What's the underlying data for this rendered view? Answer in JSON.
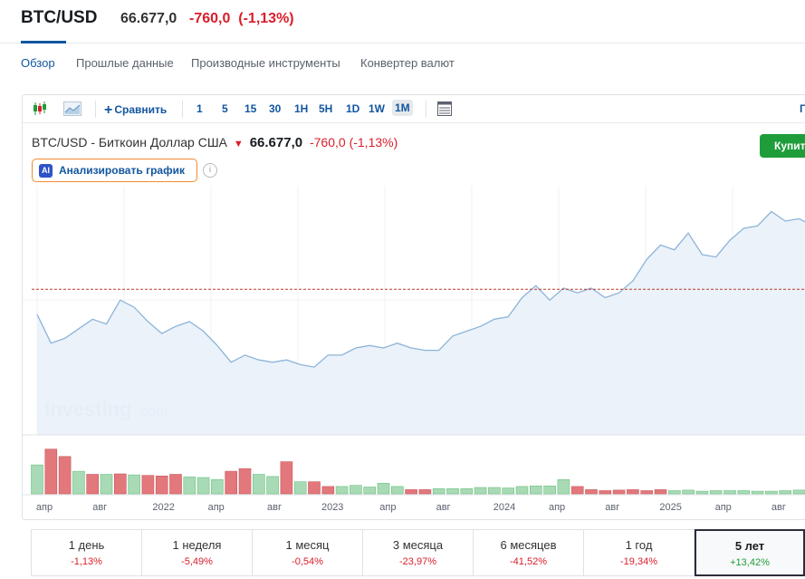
{
  "header": {
    "symbol": "BTC/USD",
    "price": "66.677,0",
    "change": "-760,0",
    "change_pct": "(-1,13%)"
  },
  "tabs": [
    {
      "label": "Обзор",
      "active": true
    },
    {
      "label": "Прошлые данные",
      "active": false
    },
    {
      "label": "Производные инструменты",
      "active": false
    },
    {
      "label": "Конвертер валют",
      "active": false
    }
  ],
  "toolbar": {
    "compare_label": "Сравнить",
    "intervals": [
      "1",
      "5",
      "15",
      "30",
      "1H",
      "5H",
      "1D",
      "1W",
      "1M"
    ],
    "active_interval": "1M",
    "right_label": "Г"
  },
  "legend": {
    "name": "BTC/USD - Биткоин Доллар США",
    "price": "66.677,0",
    "change": "-760,0",
    "change_pct": "(-1,13%)"
  },
  "ai_button": {
    "badge": "AI",
    "label": "Анализировать график"
  },
  "buy_button": {
    "label": "Купит"
  },
  "watermark": {
    "brand": "Investing",
    "suffix": ".com"
  },
  "colors": {
    "up": "#1f9d3a",
    "down": "#d91e2a",
    "line": "#8cb4d8",
    "area": "#e9f1f9",
    "accent": "#1256a0"
  },
  "chart_data": {
    "type": "area",
    "series": [
      {
        "values": [
          0.5,
          0.38,
          0.4,
          0.44,
          0.48,
          0.46,
          0.56,
          0.53,
          0.47,
          0.42,
          0.45,
          0.47,
          0.43,
          0.37,
          0.3,
          0.33,
          0.31,
          0.3,
          0.31,
          0.29,
          0.28,
          0.33,
          0.33,
          0.36,
          0.37,
          0.36,
          0.38,
          0.36,
          0.35,
          0.35,
          0.41,
          0.43,
          0.45,
          0.48,
          0.49,
          0.57,
          0.62,
          0.56,
          0.61,
          0.59,
          0.61,
          0.57,
          0.59,
          0.64,
          0.73,
          0.79,
          0.77,
          0.84,
          0.75,
          0.74,
          0.81,
          0.86,
          0.87,
          0.93,
          0.89,
          0.9,
          0.87,
          0.77,
          0.73
        ]
      }
    ],
    "volume": [
      {
        "v": 0.55,
        "up": true
      },
      {
        "v": 0.85,
        "up": false
      },
      {
        "v": 0.71,
        "up": false
      },
      {
        "v": 0.43,
        "up": true
      },
      {
        "v": 0.37,
        "up": false
      },
      {
        "v": 0.37,
        "up": true
      },
      {
        "v": 0.38,
        "up": false
      },
      {
        "v": 0.36,
        "up": true
      },
      {
        "v": 0.35,
        "up": false
      },
      {
        "v": 0.34,
        "up": false
      },
      {
        "v": 0.37,
        "up": false
      },
      {
        "v": 0.32,
        "up": true
      },
      {
        "v": 0.31,
        "up": true
      },
      {
        "v": 0.27,
        "up": true
      },
      {
        "v": 0.43,
        "up": false
      },
      {
        "v": 0.48,
        "up": false
      },
      {
        "v": 0.37,
        "up": true
      },
      {
        "v": 0.33,
        "up": true
      },
      {
        "v": 0.61,
        "up": false
      },
      {
        "v": 0.23,
        "up": true
      },
      {
        "v": 0.23,
        "up": false
      },
      {
        "v": 0.14,
        "up": false
      },
      {
        "v": 0.14,
        "up": true
      },
      {
        "v": 0.16,
        "up": true
      },
      {
        "v": 0.13,
        "up": true
      },
      {
        "v": 0.2,
        "up": true
      },
      {
        "v": 0.14,
        "up": true
      },
      {
        "v": 0.08,
        "up": false
      },
      {
        "v": 0.08,
        "up": false
      },
      {
        "v": 0.1,
        "up": true
      },
      {
        "v": 0.1,
        "up": true
      },
      {
        "v": 0.1,
        "up": true
      },
      {
        "v": 0.12,
        "up": true
      },
      {
        "v": 0.12,
        "up": true
      },
      {
        "v": 0.11,
        "up": true
      },
      {
        "v": 0.14,
        "up": true
      },
      {
        "v": 0.15,
        "up": true
      },
      {
        "v": 0.15,
        "up": true
      },
      {
        "v": 0.27,
        "up": true
      },
      {
        "v": 0.14,
        "up": false
      },
      {
        "v": 0.08,
        "up": false
      },
      {
        "v": 0.06,
        "up": false
      },
      {
        "v": 0.07,
        "up": false
      },
      {
        "v": 0.08,
        "up": false
      },
      {
        "v": 0.06,
        "up": false
      },
      {
        "v": 0.08,
        "up": false
      },
      {
        "v": 0.06,
        "up": true
      },
      {
        "v": 0.07,
        "up": true
      },
      {
        "v": 0.05,
        "up": true
      },
      {
        "v": 0.06,
        "up": true
      },
      {
        "v": 0.06,
        "up": true
      },
      {
        "v": 0.06,
        "up": true
      },
      {
        "v": 0.05,
        "up": true
      },
      {
        "v": 0.05,
        "up": true
      },
      {
        "v": 0.06,
        "up": true
      },
      {
        "v": 0.07,
        "up": true
      },
      {
        "v": 0.08,
        "up": false
      },
      {
        "v": 0.1,
        "up": false
      },
      {
        "v": 0.1,
        "up": false
      }
    ],
    "reference_level": 0.605,
    "x_tick_labels": [
      {
        "label": "апр",
        "pos": 0.0
      },
      {
        "label": "авг",
        "pos": 4.0
      },
      {
        "label": "2022",
        "pos": 8.6
      },
      {
        "label": "апр",
        "pos": 12.4
      },
      {
        "label": "авг",
        "pos": 16.6
      },
      {
        "label": "2023",
        "pos": 20.8
      },
      {
        "label": "апр",
        "pos": 24.8
      },
      {
        "label": "авг",
        "pos": 28.8
      },
      {
        "label": "2024",
        "pos": 33.2
      },
      {
        "label": "апр",
        "pos": 37.0
      },
      {
        "label": "авг",
        "pos": 41.0
      },
      {
        "label": "2025",
        "pos": 45.2
      },
      {
        "label": "апр",
        "pos": 49.0
      },
      {
        "label": "авг",
        "pos": 53.0
      }
    ]
  },
  "periods": [
    {
      "label": "1 день",
      "value": "-1,13%",
      "dir": "neg",
      "active": false
    },
    {
      "label": "1 неделя",
      "value": "-5,49%",
      "dir": "neg",
      "active": false
    },
    {
      "label": "1 месяц",
      "value": "-0,54%",
      "dir": "neg",
      "active": false
    },
    {
      "label": "3 месяца",
      "value": "-23,97%",
      "dir": "neg",
      "active": false
    },
    {
      "label": "6 месяцев",
      "value": "-41,52%",
      "dir": "neg",
      "active": false
    },
    {
      "label": "1 год",
      "value": "-19,34%",
      "dir": "neg",
      "active": false
    },
    {
      "label": "5 лет",
      "value": "+13,42%",
      "dir": "pos",
      "active": true
    }
  ]
}
